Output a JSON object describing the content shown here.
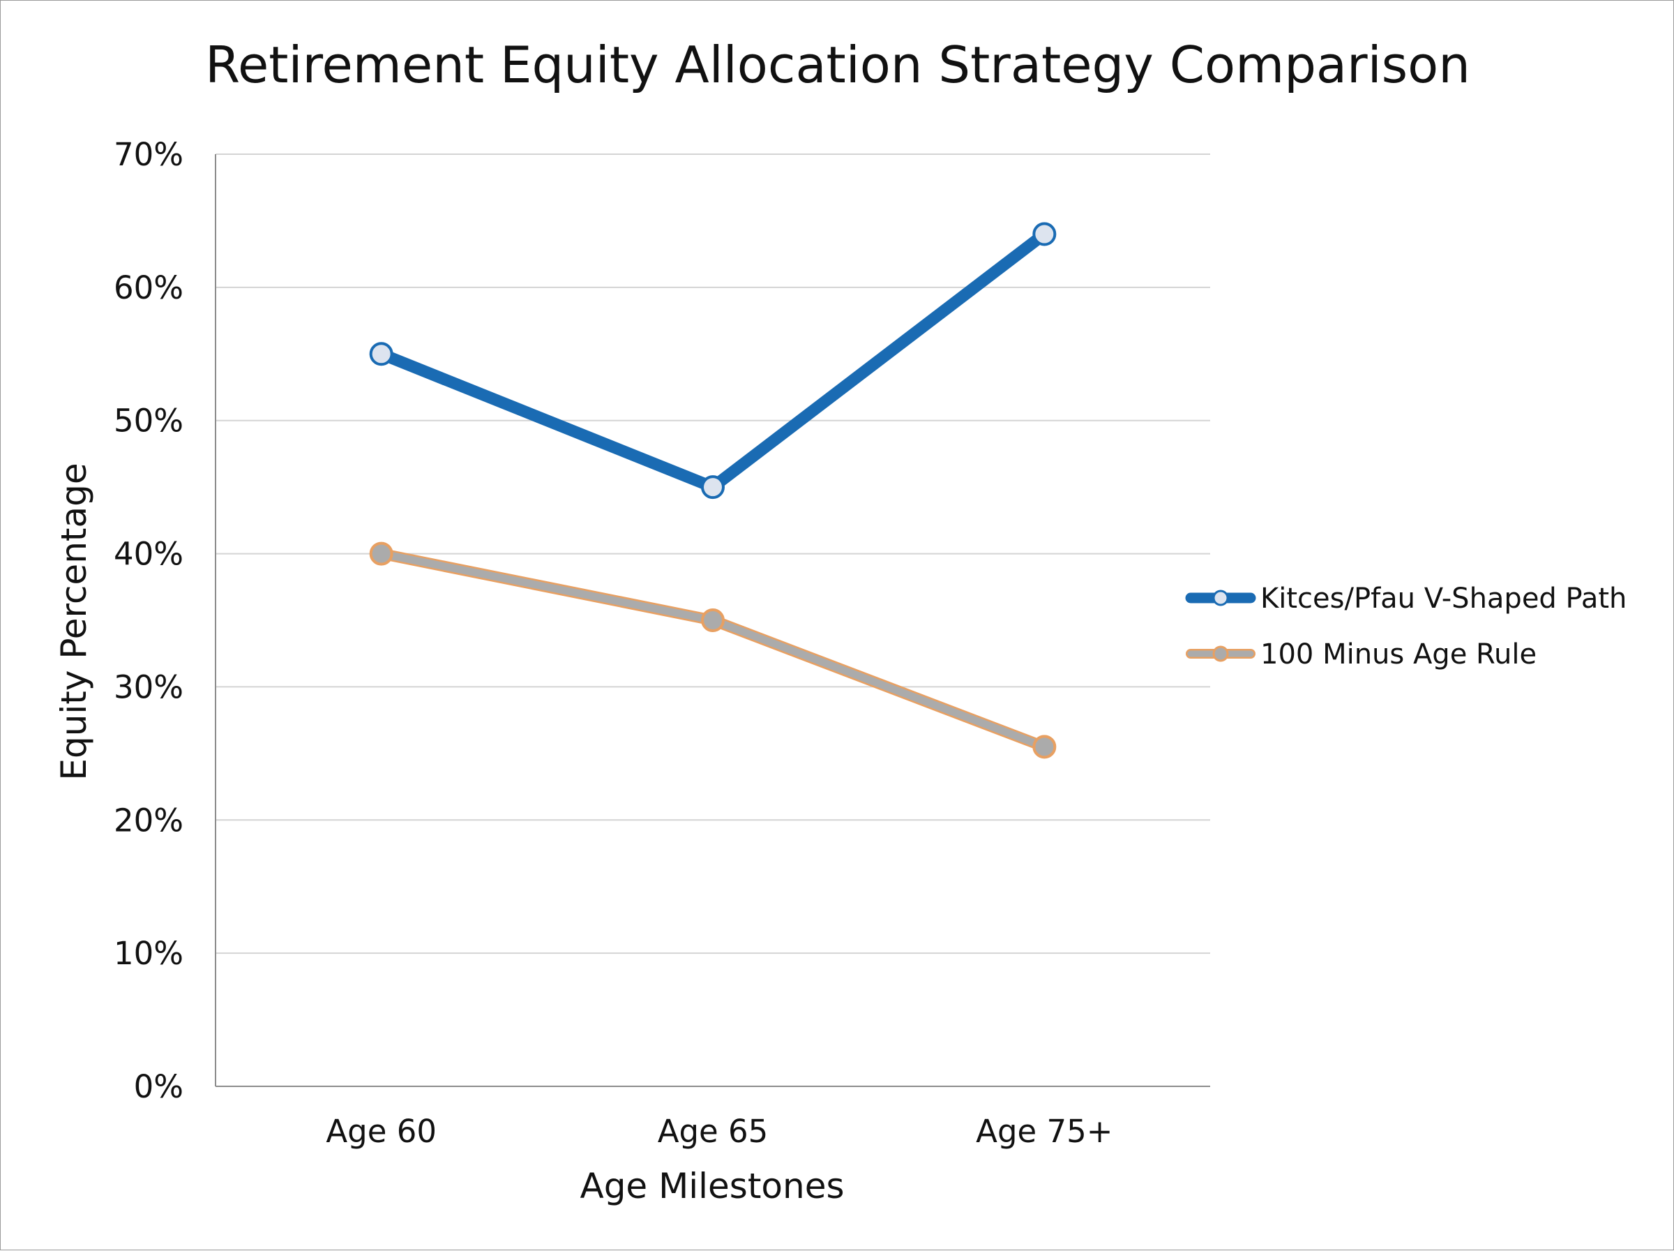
{
  "chart_data": {
    "type": "line",
    "title": "Retirement Equity Allocation Strategy Comparison",
    "xlabel": "Age Milestones",
    "ylabel": "Equity Percentage",
    "categories": [
      "Age 60",
      "Age 65",
      "Age 75+"
    ],
    "ylim": [
      0,
      70
    ],
    "yticks": [
      0,
      10,
      20,
      30,
      40,
      50,
      60,
      70
    ],
    "ytick_labels": [
      "0%",
      "10%",
      "20%",
      "30%",
      "40%",
      "50%",
      "60%",
      "70%"
    ],
    "grid": true,
    "legend_position": "right",
    "series": [
      {
        "name": "Kitces/Pfau V-Shaped Path",
        "values": [
          55,
          45,
          64
        ],
        "color": "#1a6bb3",
        "marker_fill": "#dde4ef"
      },
      {
        "name": "100 Minus Age Rule",
        "values": [
          40,
          35,
          25.5
        ],
        "color": "#ababab",
        "edge_color": "#e8a062"
      }
    ]
  }
}
